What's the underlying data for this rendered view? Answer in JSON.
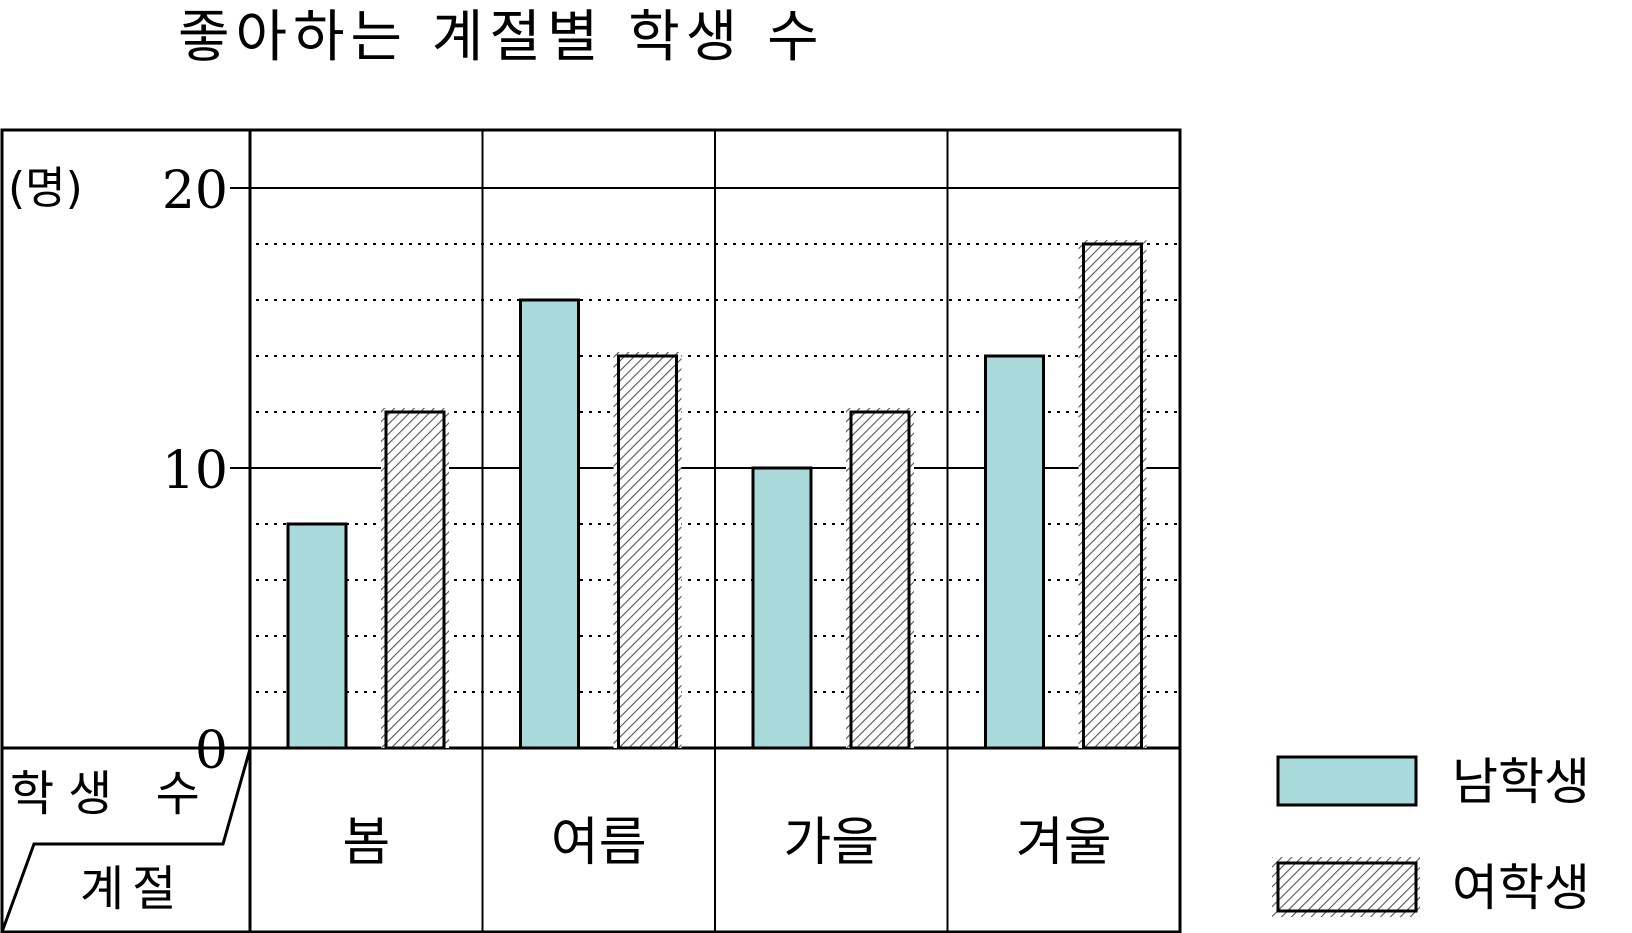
{
  "chart_data": {
    "type": "bar",
    "title": "좋아하는 계절별 학생 수",
    "unit_label": "(명)",
    "categories": [
      "봄",
      "여름",
      "가을",
      "겨울"
    ],
    "series": [
      {
        "name": "남학생",
        "values": [
          8,
          16,
          10,
          14
        ],
        "color": "#a8dadc",
        "pattern": "solid"
      },
      {
        "name": "여학생",
        "values": [
          12,
          14,
          12,
          18
        ],
        "color": "#d9d9d9",
        "pattern": "hatched"
      }
    ],
    "ylim": [
      0,
      22
    ],
    "y_ticks": [
      "0",
      "10",
      "20"
    ],
    "minor_gridline_step": 2,
    "corner_header": {
      "top": "학생 수",
      "bottom": "계절"
    },
    "legend_position": "right"
  }
}
